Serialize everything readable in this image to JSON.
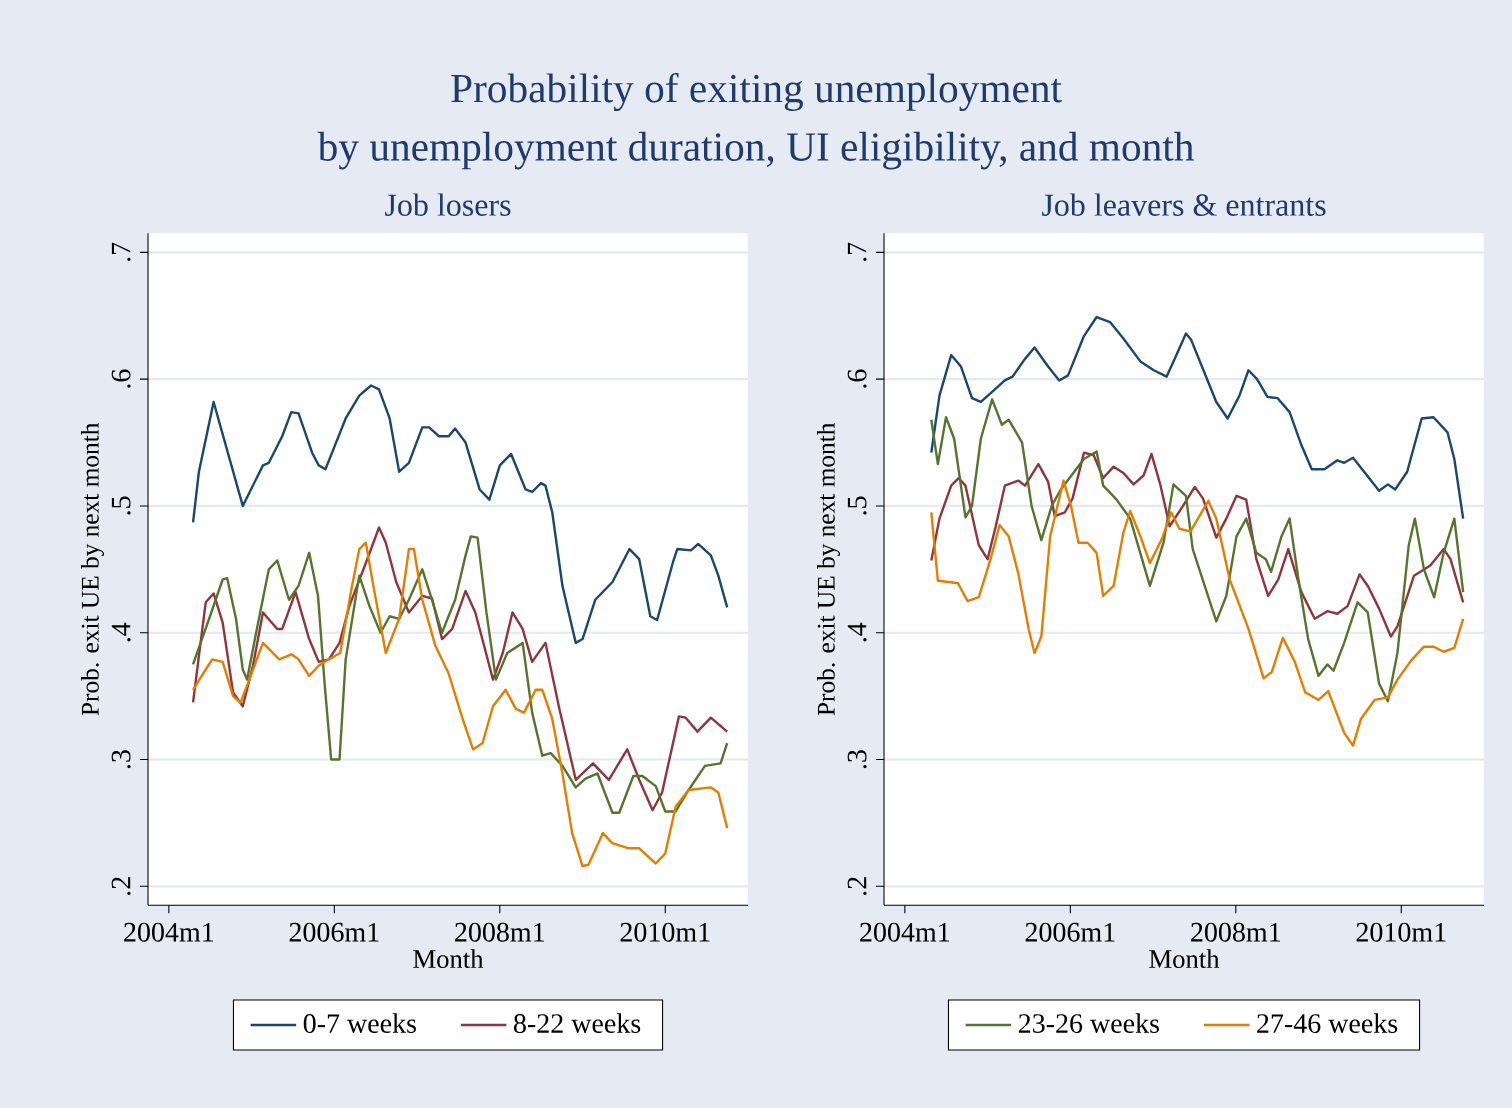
{
  "chart_data": [
    {
      "type": "other",
      "title": "Probability of exiting unemployment",
      "subtitle": "by unemployment duration, UI eligibility, and month"
    },
    {
      "type": "line",
      "title": "Job losers",
      "xlabel": "Month",
      "ylabel": "Prob. exit UE by next month",
      "xlim": [
        "2003-10-01",
        "2011-01-01"
      ],
      "ylim": [
        0.185,
        0.715
      ],
      "xticks": [
        {
          "value": "2004-01",
          "label": "2004m1"
        },
        {
          "value": "2006-01",
          "label": "2006m1"
        },
        {
          "value": "2008-01",
          "label": "2008m1"
        },
        {
          "value": "2010-01",
          "label": "2010m1"
        }
      ],
      "yticks": [
        {
          "value": 0.2,
          "label": ".2"
        },
        {
          "value": 0.3,
          "label": ".3"
        },
        {
          "value": 0.4,
          "label": ".4"
        },
        {
          "value": 0.5,
          "label": ".5"
        },
        {
          "value": 0.6,
          "label": ".6"
        },
        {
          "value": 0.7,
          "label": ".7"
        }
      ],
      "grid": "y",
      "legend": "bottom",
      "series": [
        {
          "name": "0-7 weeks",
          "color": "#1a476f",
          "x": [
            "2004-04-17",
            "2004-05-13",
            "2004-07-17",
            "2004-11-23",
            "2005-02-20",
            "2005-03-18",
            "2005-05-16",
            "2005-06-25",
            "2005-07-27",
            "2005-09-25",
            "2005-10-24",
            "2005-11-23",
            "2006-02-20",
            "2006-04-21",
            "2006-06-12",
            "2006-07-17",
            "2006-09-02",
            "2006-10-14",
            "2006-11-26",
            "2007-01-24",
            "2007-02-23",
            "2007-04-07",
            "2007-05-20",
            "2007-06-18",
            "2007-08-03",
            "2007-10-04",
            "2007-11-16",
            "2008-01-01",
            "2008-02-20",
            "2008-04-24",
            "2008-05-23",
            "2008-07-01",
            "2008-07-21",
            "2008-08-20",
            "2008-10-04",
            "2008-12-02",
            "2009-01-01",
            "2009-02-26",
            "2009-05-13",
            "2009-07-27",
            "2009-09-08",
            "2009-10-27",
            "2009-11-26",
            "2010-02-03",
            "2010-02-23",
            "2010-04-24",
            "2010-05-26",
            "2010-07-21",
            "2010-08-23",
            "2010-10-01"
          ],
          "values": [
            0.487,
            0.527,
            0.582,
            0.5,
            0.532,
            0.534,
            0.555,
            0.574,
            0.573,
            0.542,
            0.532,
            0.529,
            0.569,
            0.587,
            0.595,
            0.592,
            0.569,
            0.527,
            0.534,
            0.562,
            0.562,
            0.555,
            0.555,
            0.561,
            0.55,
            0.513,
            0.505,
            0.532,
            0.541,
            0.513,
            0.511,
            0.518,
            0.516,
            0.495,
            0.437,
            0.392,
            0.395,
            0.426,
            0.44,
            0.466,
            0.458,
            0.413,
            0.41,
            0.455,
            0.466,
            0.465,
            0.47,
            0.461,
            0.445,
            0.42
          ]
        },
        {
          "name": "8-22 weeks",
          "color": "#90353b",
          "x": [
            "2004-04-17",
            "2004-06-12",
            "2004-07-17",
            "2004-08-26",
            "2004-10-11",
            "2004-11-23",
            "2005-01-07",
            "2005-02-20",
            "2005-04-24",
            "2005-05-16",
            "2005-07-14",
            "2005-09-12",
            "2005-10-24",
            "2005-12-08",
            "2006-01-24",
            "2006-03-08",
            "2006-05-20",
            "2006-07-17",
            "2006-08-16",
            "2006-10-01",
            "2006-11-26",
            "2007-01-24",
            "2007-03-08",
            "2007-04-21",
            "2007-06-05",
            "2007-08-03",
            "2007-09-15",
            "2007-12-02",
            "2008-01-14",
            "2008-02-26",
            "2008-04-11",
            "2008-05-23",
            "2008-07-21",
            "2008-09-18",
            "2008-12-02",
            "2009-02-16",
            "2009-04-27",
            "2009-07-17",
            "2009-09-08",
            "2009-11-06",
            "2009-12-18",
            "2010-03-02",
            "2010-04-01",
            "2010-05-23",
            "2010-07-21",
            "2010-10-01"
          ],
          "values": [
            0.345,
            0.424,
            0.431,
            0.408,
            0.353,
            0.342,
            0.374,
            0.416,
            0.403,
            0.403,
            0.432,
            0.395,
            0.377,
            0.379,
            0.392,
            0.421,
            0.455,
            0.483,
            0.471,
            0.44,
            0.416,
            0.429,
            0.427,
            0.395,
            0.403,
            0.433,
            0.416,
            0.363,
            0.384,
            0.416,
            0.403,
            0.377,
            0.392,
            0.342,
            0.284,
            0.297,
            0.284,
            0.308,
            0.284,
            0.26,
            0.274,
            0.334,
            0.333,
            0.322,
            0.333,
            0.322
          ]
        },
        {
          "color": "#55752f",
          "x": [
            "2004-04-17",
            "2004-07-01",
            "2004-08-26",
            "2004-09-15",
            "2004-10-24",
            "2004-11-23",
            "2004-12-12",
            "2005-01-21",
            "2005-03-18",
            "2005-04-24",
            "2005-06-15",
            "2005-07-27",
            "2005-09-12",
            "2005-10-21",
            "2005-11-20",
            "2005-12-18",
            "2006-01-24",
            "2006-02-20",
            "2006-04-21",
            "2006-06-05",
            "2006-07-24",
            "2006-09-02",
            "2006-10-14",
            "2006-11-26",
            "2007-01-24",
            "2007-03-08",
            "2007-04-21",
            "2007-06-18",
            "2007-08-03",
            "2007-08-26",
            "2007-09-25",
            "2007-11-03",
            "2007-12-15",
            "2008-02-03",
            "2008-04-11",
            "2008-05-23",
            "2008-07-07",
            "2008-08-13",
            "2008-10-04",
            "2008-12-02",
            "2009-01-14",
            "2009-03-08",
            "2009-05-13",
            "2009-06-12",
            "2009-08-13",
            "2009-09-22",
            "2009-11-20",
            "2010-01-01",
            "2010-02-16",
            "2010-04-14",
            "2010-06-25",
            "2010-09-02",
            "2010-10-01"
          ],
          "values": [
            0.375,
            0.413,
            0.442,
            0.443,
            0.411,
            0.371,
            0.363,
            0.4,
            0.45,
            0.457,
            0.426,
            0.437,
            0.463,
            0.429,
            0.358,
            0.3,
            0.3,
            0.379,
            0.445,
            0.421,
            0.4,
            0.413,
            0.411,
            0.426,
            0.45,
            0.426,
            0.4,
            0.426,
            0.461,
            0.476,
            0.475,
            0.416,
            0.363,
            0.384,
            0.392,
            0.337,
            0.303,
            0.305,
            0.295,
            0.278,
            0.285,
            0.289,
            0.258,
            0.258,
            0.287,
            0.287,
            0.279,
            0.259,
            0.259,
            0.276,
            0.295,
            0.297,
            0.313
          ]
        },
        {
          "color": "#e37e00",
          "x": [
            "2004-04-17",
            "2004-06-12",
            "2004-07-11",
            "2004-08-26",
            "2004-10-11",
            "2004-11-13",
            "2004-12-22",
            "2005-02-20",
            "2005-05-03",
            "2005-06-25",
            "2005-07-27",
            "2005-09-12",
            "2005-10-24",
            "2005-12-08",
            "2006-01-27",
            "2006-03-15",
            "2006-04-21",
            "2006-05-20",
            "2006-06-22",
            "2006-08-16",
            "2006-10-14",
            "2006-11-26",
            "2006-12-18",
            "2007-01-24",
            "2007-03-22",
            "2007-05-20",
            "2007-07-21",
            "2007-09-05",
            "2007-10-17",
            "2007-12-02",
            "2008-01-27",
            "2008-03-12",
            "2008-04-17",
            "2008-06-08",
            "2008-07-07",
            "2008-08-20",
            "2008-10-04",
            "2008-11-16",
            "2009-01-01",
            "2009-01-27",
            "2009-04-01",
            "2009-05-13",
            "2009-07-24",
            "2009-09-08",
            "2009-11-20",
            "2010-01-01",
            "2010-02-16",
            "2010-04-14",
            "2010-07-21",
            "2010-08-23",
            "2010-10-01"
          ],
          "values": [
            0.355,
            0.371,
            0.379,
            0.377,
            0.35,
            0.345,
            0.363,
            0.392,
            0.379,
            0.383,
            0.379,
            0.366,
            0.374,
            0.379,
            0.384,
            0.432,
            0.466,
            0.471,
            0.437,
            0.384,
            0.411,
            0.466,
            0.466,
            0.426,
            0.39,
            0.368,
            0.332,
            0.308,
            0.313,
            0.342,
            0.355,
            0.34,
            0.337,
            0.355,
            0.355,
            0.332,
            0.289,
            0.242,
            0.216,
            0.217,
            0.242,
            0.234,
            0.23,
            0.23,
            0.218,
            0.226,
            0.263,
            0.276,
            0.278,
            0.274,
            0.246
          ]
        }
      ]
    },
    {
      "type": "line",
      "title": "Job leavers & entrants",
      "xlabel": "Month",
      "ylabel": "Prob. exit UE by next month",
      "xlim": [
        "2003-10-01",
        "2011-01-01"
      ],
      "ylim": [
        0.185,
        0.715
      ],
      "xticks": [
        {
          "value": "2004-01",
          "label": "2004m1"
        },
        {
          "value": "2006-01",
          "label": "2006m1"
        },
        {
          "value": "2008-01",
          "label": "2008m1"
        },
        {
          "value": "2010-01",
          "label": "2010m1"
        }
      ],
      "yticks": [
        {
          "value": 0.2,
          "label": ".2"
        },
        {
          "value": 0.3,
          "label": ".3"
        },
        {
          "value": 0.4,
          "label": ".4"
        },
        {
          "value": 0.5,
          "label": ".5"
        },
        {
          "value": 0.6,
          "label": ".6"
        },
        {
          "value": 0.7,
          "label": ".7"
        }
      ],
      "grid": "y",
      "legend": "bottom",
      "series": [
        {
          "color": "#1a476f",
          "x": [
            "2004-04-27",
            "2004-06-02",
            "2004-07-24",
            "2004-09-05",
            "2004-10-24",
            "2004-12-02",
            "2005-01-21",
            "2005-03-18",
            "2005-04-21",
            "2005-06-15",
            "2005-07-27",
            "2005-09-25",
            "2005-11-13",
            "2005-12-22",
            "2006-03-02",
            "2006-04-27",
            "2006-06-25",
            "2006-08-23",
            "2006-11-06",
            "2007-01-04",
            "2007-03-02",
            "2007-04-14",
            "2007-05-26",
            "2007-06-18",
            "2007-08-09",
            "2007-10-07",
            "2007-11-26",
            "2008-01-17",
            "2008-02-26",
            "2008-04-04",
            "2008-05-20",
            "2008-07-04",
            "2008-08-26",
            "2008-10-17",
            "2008-12-02",
            "2009-01-27",
            "2009-03-25",
            "2009-04-24",
            "2009-06-02",
            "2009-07-21",
            "2009-09-25",
            "2009-11-03",
            "2009-12-05",
            "2010-01-27",
            "2010-04-01",
            "2010-05-23",
            "2010-07-24",
            "2010-08-23",
            "2010-10-01"
          ],
          "values": [
            0.542,
            0.587,
            0.619,
            0.61,
            0.585,
            0.582,
            0.59,
            0.599,
            0.602,
            0.616,
            0.625,
            0.61,
            0.599,
            0.603,
            0.634,
            0.649,
            0.645,
            0.632,
            0.614,
            0.607,
            0.602,
            0.619,
            0.636,
            0.631,
            0.608,
            0.582,
            0.569,
            0.587,
            0.607,
            0.6,
            0.586,
            0.585,
            0.574,
            0.548,
            0.529,
            0.529,
            0.536,
            0.534,
            0.538,
            0.527,
            0.512,
            0.517,
            0.513,
            0.527,
            0.569,
            0.57,
            0.558,
            0.537,
            0.49
          ]
        },
        {
          "color": "#90353b",
          "x": [
            "2004-04-27",
            "2004-06-02",
            "2004-07-24",
            "2004-08-26",
            "2004-09-25",
            "2004-11-23",
            "2005-01-01",
            "2005-02-06",
            "2005-03-18",
            "2005-05-16",
            "2005-06-15",
            "2005-08-13",
            "2005-09-25",
            "2005-10-24",
            "2005-12-08",
            "2006-01-11",
            "2006-03-02",
            "2006-04-14",
            "2006-05-26",
            "2006-07-11",
            "2006-08-23",
            "2006-10-07",
            "2006-11-20",
            "2006-12-25",
            "2007-02-03",
            "2007-03-15",
            "2007-05-13",
            "2007-07-04",
            "2007-08-09",
            "2007-10-07",
            "2007-11-20",
            "2008-01-04",
            "2008-02-16",
            "2008-04-01",
            "2008-05-23",
            "2008-07-07",
            "2008-08-20",
            "2008-10-17",
            "2008-12-15",
            "2009-02-09",
            "2009-03-25",
            "2009-05-09",
            "2009-07-01",
            "2009-08-06",
            "2009-09-25",
            "2009-11-16",
            "2009-12-15",
            "2010-02-26",
            "2010-05-09",
            "2010-07-07",
            "2010-08-06",
            "2010-10-01"
          ],
          "values": [
            0.457,
            0.49,
            0.516,
            0.522,
            0.516,
            0.469,
            0.458,
            0.484,
            0.516,
            0.52,
            0.516,
            0.533,
            0.519,
            0.492,
            0.495,
            0.506,
            0.542,
            0.54,
            0.522,
            0.531,
            0.526,
            0.517,
            0.524,
            0.541,
            0.516,
            0.484,
            0.5,
            0.515,
            0.506,
            0.475,
            0.49,
            0.508,
            0.505,
            0.458,
            0.429,
            0.442,
            0.466,
            0.432,
            0.411,
            0.417,
            0.415,
            0.421,
            0.446,
            0.437,
            0.419,
            0.397,
            0.405,
            0.445,
            0.453,
            0.466,
            0.458,
            0.424
          ]
        },
        {
          "name": "23-26 weeks",
          "color": "#55752f",
          "x": [
            "2004-04-27",
            "2004-05-26",
            "2004-07-01",
            "2004-08-06",
            "2004-09-25",
            "2004-10-24",
            "2004-12-02",
            "2005-01-21",
            "2005-03-05",
            "2005-04-04",
            "2005-06-02",
            "2005-07-14",
            "2005-08-26",
            "2005-10-11",
            "2005-11-20",
            "2006-03-02",
            "2006-04-27",
            "2006-05-26",
            "2006-07-24",
            "2006-09-22",
            "2006-12-18",
            "2007-02-16",
            "2007-04-01",
            "2007-05-26",
            "2007-06-25",
            "2007-10-07",
            "2007-11-20",
            "2008-01-04",
            "2008-02-16",
            "2008-04-01",
            "2008-05-13",
            "2008-06-05",
            "2008-07-21",
            "2008-08-26",
            "2008-10-04",
            "2008-11-16",
            "2009-01-01",
            "2009-02-09",
            "2009-03-08",
            "2009-04-24",
            "2009-06-22",
            "2009-08-06",
            "2009-09-25",
            "2009-11-03",
            "2009-12-15",
            "2010-02-03",
            "2010-03-02",
            "2010-04-11",
            "2010-05-26",
            "2010-07-07",
            "2010-08-23",
            "2010-10-01"
          ],
          "values": [
            0.568,
            0.533,
            0.57,
            0.553,
            0.491,
            0.5,
            0.553,
            0.584,
            0.564,
            0.568,
            0.55,
            0.5,
            0.473,
            0.5,
            0.513,
            0.537,
            0.543,
            0.516,
            0.505,
            0.49,
            0.437,
            0.471,
            0.517,
            0.508,
            0.466,
            0.409,
            0.429,
            0.476,
            0.49,
            0.463,
            0.458,
            0.448,
            0.476,
            0.49,
            0.442,
            0.395,
            0.366,
            0.375,
            0.37,
            0.392,
            0.424,
            0.416,
            0.36,
            0.346,
            0.384,
            0.469,
            0.49,
            0.45,
            0.428,
            0.463,
            0.49,
            0.432
          ]
        },
        {
          "name": "27-46 weeks",
          "color": "#e37e00",
          "x": [
            "2004-04-27",
            "2004-05-26",
            "2004-07-14",
            "2004-08-23",
            "2004-10-04",
            "2004-11-23",
            "2005-01-14",
            "2005-02-23",
            "2005-04-04",
            "2005-05-16",
            "2005-07-01",
            "2005-07-27",
            "2005-08-26",
            "2005-10-04",
            "2005-12-02",
            "2006-01-04",
            "2006-02-06",
            "2006-03-18",
            "2006-04-27",
            "2006-05-26",
            "2006-07-11",
            "2006-08-23",
            "2006-09-22",
            "2006-11-06",
            "2006-12-18",
            "2007-02-09",
            "2007-03-22",
            "2007-04-27",
            "2007-06-15",
            "2007-09-02",
            "2007-10-07",
            "2007-12-05",
            "2008-02-26",
            "2008-05-03",
            "2008-06-08",
            "2008-07-27",
            "2008-09-18",
            "2008-11-03",
            "2009-01-01",
            "2009-02-13",
            "2009-04-24",
            "2009-06-02",
            "2009-07-07",
            "2009-09-05",
            "2009-11-03",
            "2009-12-15",
            "2010-02-13",
            "2010-04-11",
            "2010-05-23",
            "2010-07-07",
            "2010-08-23",
            "2010-10-01"
          ],
          "values": [
            0.495,
            0.441,
            0.44,
            0.439,
            0.425,
            0.428,
            0.458,
            0.485,
            0.476,
            0.447,
            0.403,
            0.384,
            0.397,
            0.476,
            0.52,
            0.5,
            0.471,
            0.471,
            0.463,
            0.429,
            0.437,
            0.479,
            0.496,
            0.476,
            0.455,
            0.474,
            0.495,
            0.482,
            0.48,
            0.504,
            0.49,
            0.442,
            0.403,
            0.364,
            0.369,
            0.396,
            0.377,
            0.353,
            0.347,
            0.354,
            0.321,
            0.311,
            0.332,
            0.347,
            0.349,
            0.363,
            0.378,
            0.389,
            0.389,
            0.385,
            0.388,
            0.411
          ]
        }
      ]
    }
  ]
}
